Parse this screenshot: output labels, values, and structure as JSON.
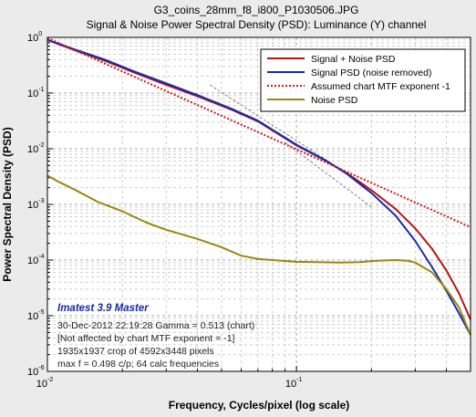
{
  "chart_data": {
    "type": "line",
    "title": "G3_coins_28mm_f8_i800_P1030506.JPG",
    "subtitle": "Signal & Noise Power Spectral Density (PSD):  Luminance (Y) channel",
    "xlabel": "Frequency, Cycles/pixel (log scale)",
    "ylabel": "Power Spectral Density (PSD)",
    "xscale": "log",
    "yscale": "log",
    "xlim": [
      0.01,
      0.5
    ],
    "ylim": [
      1e-06,
      1
    ],
    "grid": true,
    "legend_position": "top-right",
    "x_ticks": [
      {
        "value": 0.01,
        "mantissa": "10",
        "exponent": "-2"
      },
      {
        "value": 0.1,
        "mantissa": "10",
        "exponent": "-1"
      }
    ],
    "y_ticks": [
      {
        "value": 1,
        "mantissa": "10",
        "exponent": "0"
      },
      {
        "value": 0.1,
        "mantissa": "10",
        "exponent": "-1"
      },
      {
        "value": 0.01,
        "mantissa": "10",
        "exponent": "-2"
      },
      {
        "value": 0.001,
        "mantissa": "10",
        "exponent": "-3"
      },
      {
        "value": 0.0001,
        "mantissa": "10",
        "exponent": "-4"
      },
      {
        "value": 1e-05,
        "mantissa": "10",
        "exponent": "-5"
      },
      {
        "value": 1e-06,
        "mantissa": "10",
        "exponent": "-6"
      }
    ],
    "series": [
      {
        "name": "Signal + Noise PSD",
        "color": "#b01818",
        "style": "solid",
        "x": [
          0.01,
          0.013,
          0.017,
          0.022,
          0.03,
          0.04,
          0.055,
          0.07,
          0.1,
          0.13,
          0.16,
          0.2,
          0.25,
          0.3,
          0.35,
          0.4,
          0.45,
          0.5
        ],
        "y": [
          0.9,
          0.58,
          0.38,
          0.24,
          0.14,
          0.088,
          0.05,
          0.031,
          0.0115,
          0.0062,
          0.0036,
          0.0018,
          0.00083,
          0.00037,
          0.00016,
          6.5e-05,
          2.5e-05,
          8.5e-06
        ]
      },
      {
        "name": "Signal PSD (noise removed)",
        "color": "#1a2aa8",
        "style": "solid",
        "x": [
          0.01,
          0.013,
          0.017,
          0.022,
          0.03,
          0.04,
          0.055,
          0.07,
          0.1,
          0.13,
          0.16,
          0.2,
          0.25,
          0.3,
          0.35,
          0.4,
          0.45,
          0.5
        ],
        "y": [
          0.9,
          0.6,
          0.4,
          0.25,
          0.15,
          0.092,
          0.052,
          0.032,
          0.0118,
          0.0063,
          0.0035,
          0.0016,
          0.00063,
          0.00022,
          7.5e-05,
          2.8e-05,
          1.1e-05,
          4.5e-06
        ]
      },
      {
        "name": "Assumed chart MTF exponent  -1",
        "color": "#cc1a1a",
        "style": "dotted",
        "x": [
          0.01,
          0.5
        ],
        "y": [
          0.98,
          0.00039
        ]
      },
      {
        "name": "Noise PSD",
        "color": "#9b8610",
        "style": "solid",
        "x": [
          0.01,
          0.011,
          0.013,
          0.016,
          0.02,
          0.025,
          0.03,
          0.04,
          0.05,
          0.06,
          0.07,
          0.08,
          0.1,
          0.12,
          0.15,
          0.18,
          0.2,
          0.22,
          0.25,
          0.28,
          0.3,
          0.35,
          0.4,
          0.45,
          0.5
        ],
        "y": [
          0.0033,
          0.0026,
          0.0018,
          0.0011,
          0.00075,
          0.00047,
          0.00035,
          0.00024,
          0.00017,
          0.00012,
          0.000105,
          0.0001,
          9.3e-05,
          9.2e-05,
          9e-05,
          9.2e-05,
          9.6e-05,
          9.8e-05,
          0.0001,
          9.7e-05,
          9e-05,
          6e-05,
          3e-05,
          1.4e-05,
          4.5e-06
        ]
      }
    ],
    "annotations": {
      "heading": "Imatest 3.9 Master",
      "lines": [
        "30-Dec-2012 22:19:28   Gamma = 0.513 (chart)",
        "[Not affected by chart MTF exponent = -1]",
        "1935x1937 crop of 4592x3448 pixels",
        "max f = 0.498 c/p;  64 calc frequencies"
      ]
    }
  }
}
